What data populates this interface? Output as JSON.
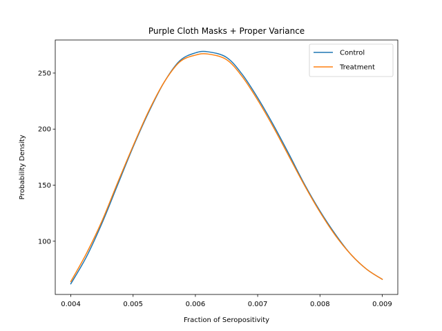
{
  "chart_data": {
    "type": "line",
    "title": "Purple Cloth Masks + Proper Variance",
    "xlabel": "Fraction of Seropositivity",
    "ylabel": "Probability Density",
    "xlim": [
      0.00375,
      0.00925
    ],
    "ylim": [
      52.5,
      279.5
    ],
    "xticks": [
      0.004,
      0.005,
      0.006,
      0.007,
      0.008,
      0.009
    ],
    "xtick_labels": [
      "0.004",
      "0.005",
      "0.006",
      "0.007",
      "0.008",
      "0.009"
    ],
    "yticks": [
      100,
      150,
      200,
      250
    ],
    "ytick_labels": [
      "100",
      "150",
      "200",
      "250"
    ],
    "legend_position": "top-right",
    "grid": false,
    "series": [
      {
        "name": "Control",
        "color": "#1f77b4",
        "x": [
          0.004,
          0.00425,
          0.0045,
          0.00475,
          0.005,
          0.00525,
          0.0055,
          0.00575,
          0.006,
          0.0062,
          0.0065,
          0.00675,
          0.007,
          0.00725,
          0.0075,
          0.00775,
          0.008,
          0.00825,
          0.0085,
          0.00875,
          0.009
        ],
        "y": [
          62,
          86,
          116,
          150,
          184,
          215,
          242,
          261,
          268,
          269,
          264,
          249,
          228,
          204,
          178,
          151,
          127,
          106,
          88,
          75,
          66
        ]
      },
      {
        "name": "Treatment",
        "color": "#ff7f0e",
        "x": [
          0.004,
          0.00425,
          0.0045,
          0.00475,
          0.005,
          0.00525,
          0.0055,
          0.00575,
          0.006,
          0.0062,
          0.0065,
          0.00675,
          0.007,
          0.00725,
          0.0075,
          0.00775,
          0.008,
          0.00825,
          0.0085,
          0.00875,
          0.009
        ],
        "y": [
          64,
          89,
          118,
          152,
          185,
          216,
          242,
          260,
          266,
          267,
          262,
          247,
          226,
          202,
          176,
          150,
          126,
          105,
          88,
          75,
          66
        ]
      }
    ]
  }
}
